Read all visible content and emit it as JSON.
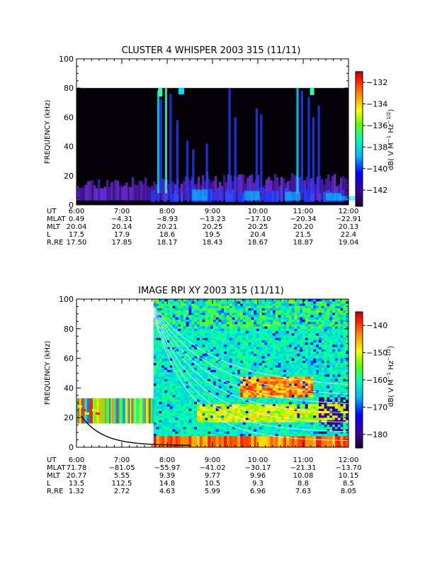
{
  "chart_data": [
    {
      "type": "heatmap",
      "title": "CLUSTER 4 WHISPER 2003 315 (11/11)",
      "ylabel": "FREQUENCY (kHz)",
      "ylim": [
        0,
        100
      ],
      "y_ticks": [
        "0",
        "20",
        "40",
        "60",
        "80",
        "100"
      ],
      "x_range_hours": [
        6,
        12
      ],
      "x_ticks": [
        "6:00",
        "7:00",
        "8:00",
        "9:00",
        "10:00",
        "11:00",
        "12:00"
      ],
      "colorbar": {
        "label": "dB( V M",
        "label_sup1": "−1",
        "label_mid": " Hz",
        "label_sup2": "−1/2",
        "label_end": ")",
        "range": [
          -143.5,
          -131
        ],
        "ticks": [
          "−132",
          "−134",
          "−136",
          "−138",
          "−140",
          "−142"
        ],
        "tick_values": [
          -132,
          -134,
          -136,
          -138,
          -140,
          -142
        ]
      },
      "ephemeris": {
        "labels": [
          "UT",
          "MLAT",
          "MLT",
          "L",
          "R,RE"
        ],
        "rows": [
          [
            "6:00",
            "7:00",
            "8:00",
            "9:00",
            "10:00",
            "11:00",
            "12:00"
          ],
          [
            "0.49",
            "−4.31",
            "−8.93",
            "−13.23",
            "−17.10",
            "−20.34",
            "−22.91"
          ],
          [
            "20.04",
            "20.14",
            "20.21",
            "20.25",
            "20.25",
            "20.20",
            "20.13"
          ],
          [
            "17.5",
            "17.9",
            "18.6",
            "19.5",
            "20.4",
            "21.5",
            "22.4"
          ],
          [
            "17.50",
            "17.85",
            "18.17",
            "18.43",
            "18.67",
            "18.87",
            "19.04"
          ]
        ]
      },
      "features": {
        "data_ceiling_khz": 80,
        "background": "#050008",
        "colors": {
          "purple": "#4a1aa8",
          "violet": "#6a2ad0",
          "blue": "#1a3cff",
          "cyan": "#00d8ff",
          "mint": "#30ffb0"
        }
      }
    },
    {
      "type": "heatmap",
      "title": "IMAGE RPI XY 2003 315 (11/11)",
      "ylabel": "FREQUENCY (kHz)",
      "ylim": [
        0,
        100
      ],
      "y_ticks": [
        "0",
        "20",
        "40",
        "60",
        "80",
        "100"
      ],
      "x_range_hours": [
        6,
        12
      ],
      "x_ticks": [
        "6:00",
        "7:00",
        "8:00",
        "9:00",
        "10:00",
        "11:00",
        "12:00"
      ],
      "colorbar": {
        "label": "dB( V M",
        "label_sup1": "−1",
        "label_mid": " Hz",
        "label_sup2": "−1/2",
        "label_end": ")",
        "range": [
          -185,
          -135
        ],
        "ticks": [
          "−140",
          "−150",
          "−160",
          "−170",
          "−180"
        ],
        "tick_values": [
          -140,
          -150,
          -160,
          -170,
          -180
        ]
      },
      "ephemeris": {
        "labels": [
          "UT",
          "MLAT",
          "MLT",
          "L",
          "R,RE"
        ],
        "rows": [
          [
            "6:00",
            "7:00",
            "8:00",
            "9:00",
            "10:00",
            "11:00",
            "12:00"
          ],
          [
            "71.78",
            "−81.05",
            "−55.97",
            "−41.02",
            "−30.17",
            "−21.31",
            "−13.70"
          ],
          [
            "20.77",
            "5.55",
            "9.39",
            "9.77",
            "9.96",
            "10.08",
            "10.15"
          ],
          [
            "13.5",
            "112.5",
            "14.8",
            "10.5",
            "9.3",
            "8.8",
            "8.5"
          ],
          [
            "1.32",
            "2.72",
            "4.63",
            "5.99",
            "6.96",
            "7.63",
            "8.05"
          ]
        ]
      },
      "features": {
        "early_block_hours": [
          6,
          7.7
        ],
        "early_block_khz": [
          16,
          33
        ],
        "main_block_start_hour": 7.7,
        "bottom_strip_khz": [
          0,
          7.5
        ],
        "overlay_curve": "white",
        "plasma_line": "black"
      }
    }
  ]
}
